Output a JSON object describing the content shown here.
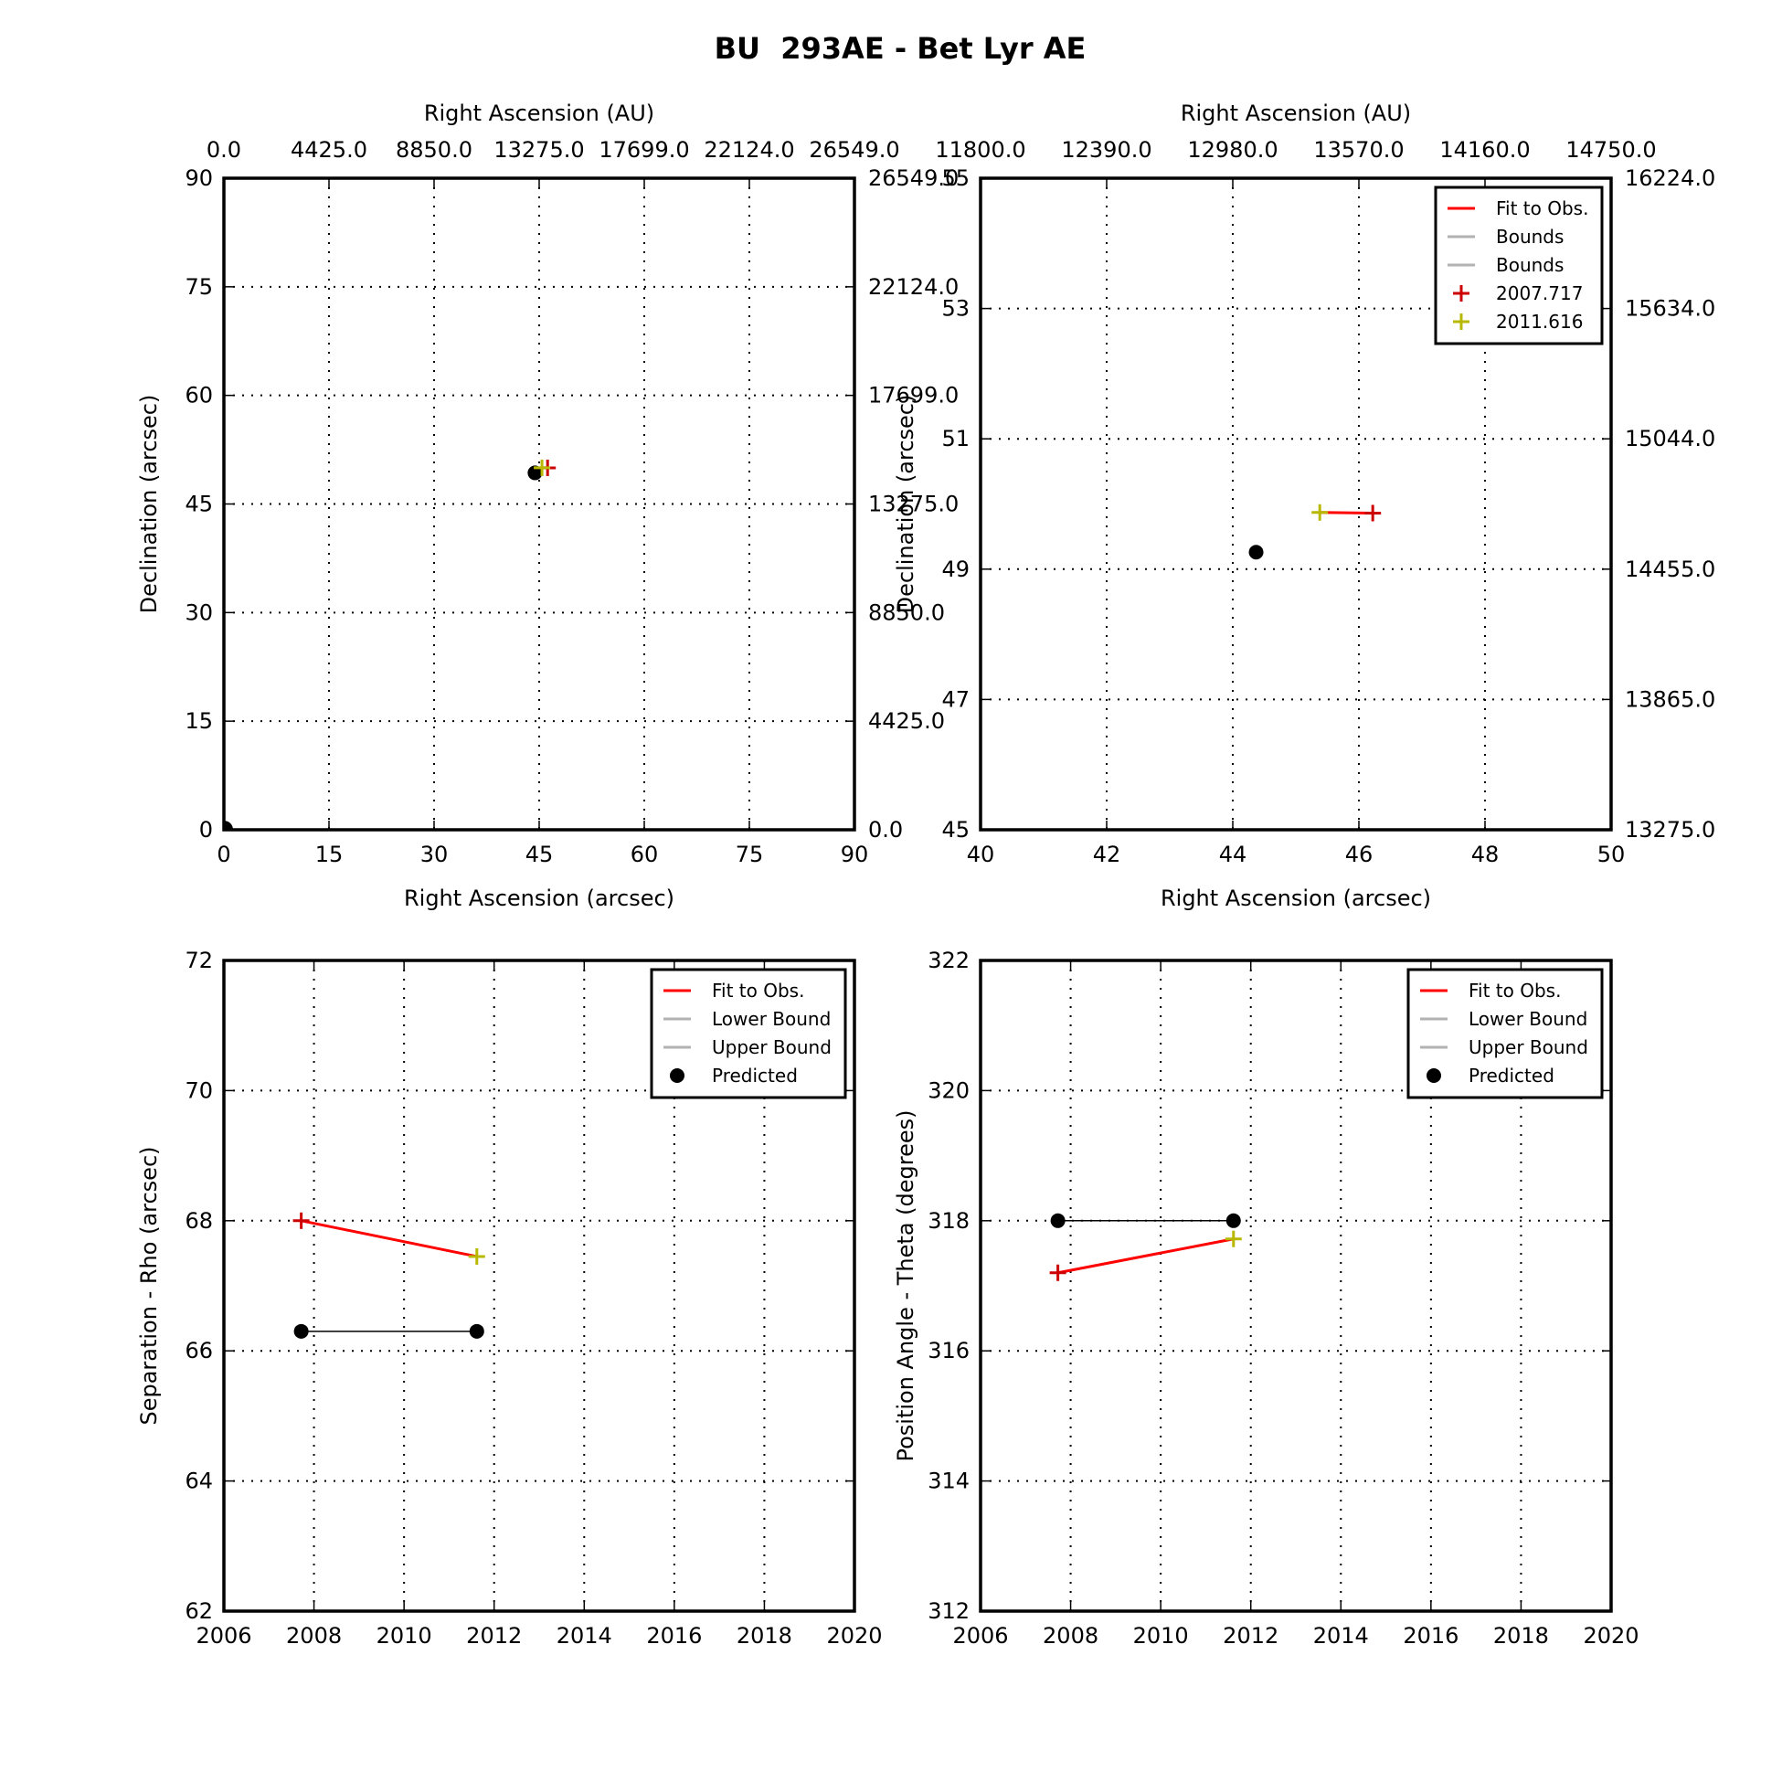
{
  "figure": {
    "title": "BU  293AE - Bet Lyr AE",
    "colors": {
      "fit": "#ff0000",
      "bound": "#b2b2b2",
      "predicted": "#000000",
      "obs_2007": "#cc0000",
      "obs_2011": "#b8b800"
    }
  },
  "chart_data": [
    {
      "id": "sky-full",
      "type": "scatter",
      "xlabel": "Right Ascension (arcsec)",
      "ylabel": "Declination (arcsec)",
      "top_xlabel": "Right Ascension (AU)",
      "xlim": [
        0,
        90
      ],
      "ylim": [
        0,
        90
      ],
      "xticks": [
        "0",
        "15",
        "30",
        "45",
        "60",
        "75",
        "90"
      ],
      "yticks": [
        "0",
        "15",
        "30",
        "45",
        "60",
        "75",
        "90"
      ],
      "top_ticks": [
        "0.0",
        "4425.0",
        "8850.0",
        "13275.0",
        "17699.0",
        "22124.0",
        "26549.0"
      ],
      "right_ticks": [
        "0.0",
        "4425.0",
        "8850.0",
        "13275.0",
        "17699.0",
        "22124.0",
        "26549.0"
      ],
      "grid": true,
      "primary": [
        0,
        0
      ],
      "predicted": [
        [
          44.4,
          49.3
        ]
      ],
      "fit_line": [
        [
          45.4,
          50.0
        ],
        [
          46.2,
          50.0
        ]
      ],
      "observations": [
        {
          "epoch": "2007.717",
          "x": 46.2,
          "y": 49.99
        },
        {
          "epoch": "2011.616",
          "x": 45.4,
          "y": 50.0
        }
      ]
    },
    {
      "id": "sky-zoom",
      "type": "scatter",
      "xlabel": "Right Ascension (arcsec)",
      "ylabel": "Declination (arcsec)",
      "top_xlabel": "Right Ascension (AU)",
      "xlim": [
        40,
        50
      ],
      "ylim": [
        45,
        55
      ],
      "xticks": [
        "40",
        "42",
        "44",
        "46",
        "48",
        "50"
      ],
      "yticks": [
        "45",
        "47",
        "49",
        "51",
        "53",
        "55"
      ],
      "top_ticks": [
        "11800.0",
        "12390.0",
        "12980.0",
        "13570.0",
        "14160.0",
        "14750.0"
      ],
      "right_ticks": [
        "13275.0",
        "13865.0",
        "14455.0",
        "15044.0",
        "15634.0",
        "16224.0"
      ],
      "grid": true,
      "legend": {
        "position": "upper-right",
        "entries": [
          "Fit to Obs.",
          "Bounds",
          "Bounds",
          "2007.717",
          "2011.616"
        ]
      },
      "predicted": [
        [
          44.37,
          49.26
        ]
      ],
      "fit_line": [
        [
          45.38,
          49.87
        ],
        [
          46.22,
          49.86
        ]
      ],
      "observations": [
        {
          "epoch": "2007.717",
          "x": 46.22,
          "y": 49.86
        },
        {
          "epoch": "2011.616",
          "x": 45.38,
          "y": 49.87
        }
      ]
    },
    {
      "id": "rho-time",
      "type": "line",
      "xlabel": "",
      "ylabel": "Separation - Rho (arcsec)",
      "xlim": [
        2006,
        2020
      ],
      "ylim": [
        62,
        72
      ],
      "xticks": [
        "2006",
        "2008",
        "2010",
        "2012",
        "2014",
        "2016",
        "2018",
        "2020"
      ],
      "yticks": [
        "62",
        "64",
        "66",
        "68",
        "70",
        "72"
      ],
      "grid": true,
      "legend": {
        "position": "upper-right",
        "entries": [
          "Fit to Obs.",
          "Lower Bound",
          "Upper Bound",
          "Predicted"
        ]
      },
      "series": [
        {
          "name": "Fit to Obs.",
          "x": [
            2007.717,
            2011.616
          ],
          "y": [
            68.0,
            67.45
          ]
        },
        {
          "name": "Predicted",
          "x": [
            2007.717,
            2011.616
          ],
          "y": [
            66.3,
            66.3
          ]
        }
      ],
      "observations": [
        {
          "epoch": "2007.717",
          "x": 2007.717,
          "y": 68.0
        },
        {
          "epoch": "2011.616",
          "x": 2011.616,
          "y": 67.45
        }
      ]
    },
    {
      "id": "theta-time",
      "type": "line",
      "xlabel": "",
      "ylabel": "Position Angle - Theta (degrees)",
      "xlim": [
        2006,
        2020
      ],
      "ylim": [
        312,
        322
      ],
      "xticks": [
        "2006",
        "2008",
        "2010",
        "2012",
        "2014",
        "2016",
        "2018",
        "2020"
      ],
      "yticks": [
        "312",
        "314",
        "316",
        "318",
        "320",
        "322"
      ],
      "grid": true,
      "legend": {
        "position": "upper-right",
        "entries": [
          "Fit to Obs.",
          "Lower Bound",
          "Upper Bound",
          "Predicted"
        ]
      },
      "series": [
        {
          "name": "Fit to Obs.",
          "x": [
            2007.717,
            2011.616
          ],
          "y": [
            317.2,
            317.72
          ]
        },
        {
          "name": "Predicted",
          "x": [
            2007.717,
            2011.616
          ],
          "y": [
            318.0,
            318.0
          ]
        }
      ],
      "observations": [
        {
          "epoch": "2007.717",
          "x": 2007.717,
          "y": 317.2
        },
        {
          "epoch": "2011.616",
          "x": 2011.616,
          "y": 317.72
        }
      ]
    }
  ]
}
